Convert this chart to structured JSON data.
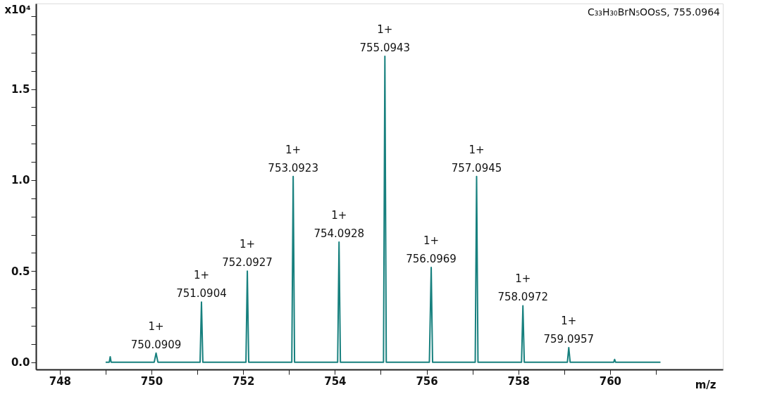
{
  "chart_data": {
    "type": "line",
    "xlabel": "m/z",
    "ylabel": "x10⁴",
    "series": [
      {
        "color": "#17807e",
        "x": [
          749.0,
          749.08,
          749.1,
          749.12,
          750.06,
          750.1,
          750.14,
          751.06,
          751.09,
          751.12,
          752.06,
          752.09,
          752.12,
          753.06,
          753.09,
          753.12,
          754.06,
          754.09,
          754.12,
          755.06,
          755.09,
          755.12,
          756.06,
          756.1,
          756.13,
          757.06,
          757.09,
          757.12,
          758.07,
          758.1,
          758.13,
          759.07,
          759.1,
          759.13,
          760.08,
          760.1,
          760.12,
          761.1
        ],
        "values": [
          0,
          0,
          0.03,
          0,
          0,
          0.05,
          0,
          0,
          0.33,
          0,
          0,
          0.5,
          0,
          0,
          1.02,
          0,
          0,
          0.66,
          0,
          0,
          1.68,
          0,
          0,
          0.52,
          0,
          0,
          1.02,
          0,
          0,
          0.31,
          0,
          0,
          0.08,
          0,
          0,
          0.015,
          0,
          0
        ]
      }
    ],
    "xlim": [
      747.48,
      762.46
    ],
    "ylim": [
      -0.04,
      1.97
    ],
    "xticks": [
      748,
      {
        "value": 749,
        "label": null
      },
      750,
      {
        "value": 751,
        "label": null
      },
      752,
      {
        "value": 753,
        "label": null
      },
      754,
      {
        "value": 755,
        "label": null
      },
      756,
      {
        "value": 757,
        "label": null
      },
      758,
      {
        "value": 759,
        "label": null
      },
      760,
      {
        "value": 761,
        "label": null
      }
    ],
    "yticks": [
      {
        "value": 0,
        "label": "0.0"
      },
      {
        "value": 0.1,
        "label": null
      },
      {
        "value": 0.2,
        "label": null
      },
      {
        "value": 0.3,
        "label": null
      },
      {
        "value": 0.4,
        "label": null
      },
      {
        "value": 0.5,
        "label": "0.5"
      },
      {
        "value": 0.6,
        "label": null
      },
      {
        "value": 0.7,
        "label": null
      },
      {
        "value": 0.8,
        "label": null
      },
      {
        "value": 0.9,
        "label": null
      },
      {
        "value": 1.0,
        "label": "1.0"
      },
      {
        "value": 1.1,
        "label": null
      },
      {
        "value": 1.2,
        "label": null
      },
      {
        "value": 1.3,
        "label": null
      },
      {
        "value": 1.4,
        "label": null
      },
      {
        "value": 1.5,
        "label": "1.5"
      },
      {
        "value": 1.6,
        "label": null
      },
      {
        "value": 1.7,
        "label": null
      },
      {
        "value": 1.8,
        "label": null
      },
      {
        "value": 1.9,
        "label": null
      }
    ],
    "grid": false,
    "marker": "none",
    "line_style": "solid",
    "annotations": [
      "C₃₃H₃₀BrN₅OOsS, 755.0964",
      {
        "text": "1+\n750.0909",
        "x": 750.1,
        "y": 0.05
      },
      {
        "text": "1+\n751.0904",
        "x": 751.09,
        "y": 0.33
      },
      {
        "text": "1+\n752.0927",
        "x": 752.09,
        "y": 0.5
      },
      {
        "text": "1+\n753.0923",
        "x": 753.09,
        "y": 1.02
      },
      {
        "text": "1+\n754.0928",
        "x": 754.09,
        "y": 0.66
      },
      {
        "text": "1+\n755.0943",
        "x": 755.09,
        "y": 1.68
      },
      {
        "text": "1+\n756.0969",
        "x": 756.1,
        "y": 0.52
      },
      {
        "text": "1+\n757.0945",
        "x": 757.09,
        "y": 1.02
      },
      {
        "text": "1+\n758.0972",
        "x": 758.1,
        "y": 0.31
      },
      {
        "text": "1+\n759.0957",
        "x": 759.1,
        "y": 0.08
      }
    ]
  }
}
